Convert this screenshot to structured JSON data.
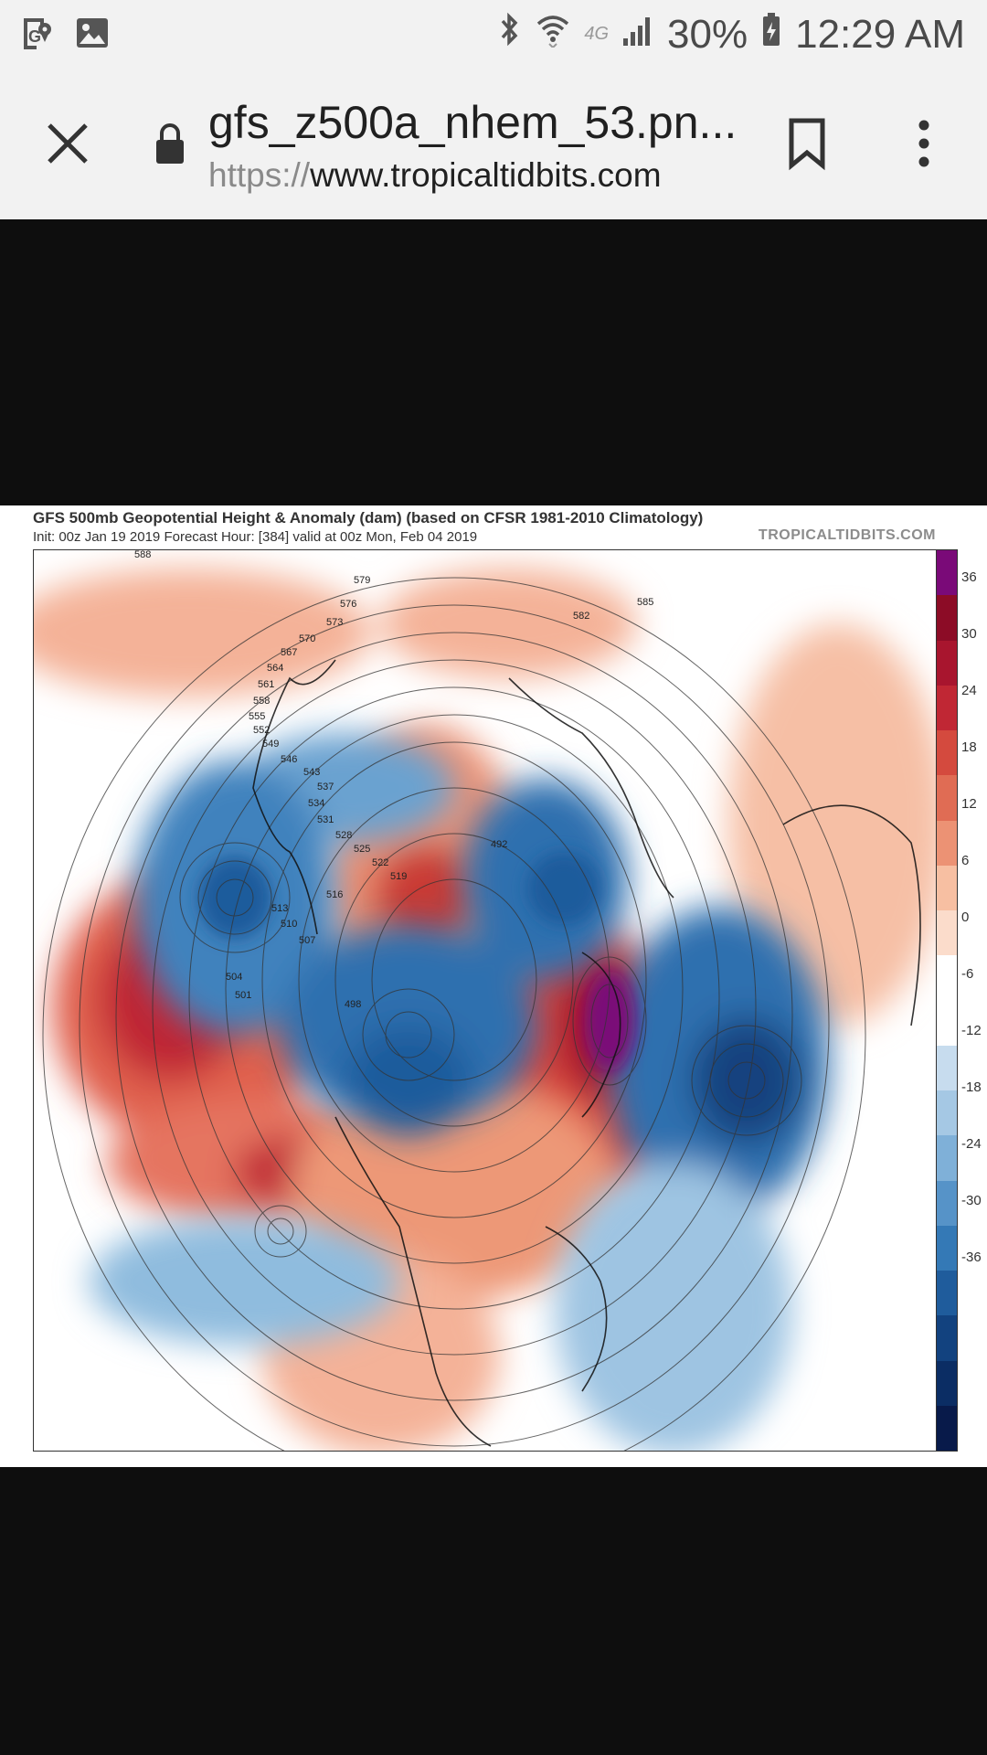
{
  "status_bar": {
    "left_icons": [
      "maps-notification-icon",
      "gallery-notification-icon"
    ],
    "network": "4G",
    "battery": "30%",
    "time": "12:29 AM",
    "right_icons": [
      "bluetooth-icon",
      "wifi-icon",
      "signal-icon",
      "battery-icon"
    ]
  },
  "url_bar": {
    "title": "gfs_z500a_nhem_53.pn...",
    "url_scheme": "https://",
    "url_host": "www.tropicaltidbits.com",
    "icons": [
      "close-icon",
      "lock-icon",
      "bookmark-icon",
      "more-vert-icon"
    ]
  },
  "image": {
    "title": "GFS 500mb Geopotential Height & Anomaly (dam) (based on CFSR 1981-2010 Climatology)",
    "subtitle": "Init: 00z Jan 19 2019   Forecast Hour: [384]   valid at 00z Mon, Feb 04 2019",
    "brand": "TROPICALTIDBITS.COM",
    "colorbar_labels": [
      "36",
      "30",
      "24",
      "18",
      "12",
      "6",
      "0",
      "-6",
      "-12",
      "-18",
      "-24",
      "-30",
      "-36"
    ],
    "colorbar_colors": [
      "#7a0a78",
      "#8c0c26",
      "#a8152e",
      "#c02734",
      "#d44a3e",
      "#e06c54",
      "#ec9274",
      "#f7bfa2",
      "#fbdccb",
      "#ffffff",
      "#ffffff",
      "#c7dcee",
      "#a5c8e4",
      "#7fb0d8",
      "#5693c8",
      "#3479b6",
      "#1f5c9c",
      "#12427f",
      "#0b2d64",
      "#081a4a"
    ],
    "contour_labels": [
      "588",
      "579",
      "576",
      "573",
      "570",
      "567",
      "564",
      "561",
      "558",
      "555",
      "552",
      "549",
      "546",
      "543",
      "537",
      "534",
      "531",
      "528",
      "525",
      "522",
      "519",
      "516",
      "513",
      "510",
      "507",
      "504",
      "501",
      "498",
      "492",
      "585",
      "582"
    ]
  }
}
